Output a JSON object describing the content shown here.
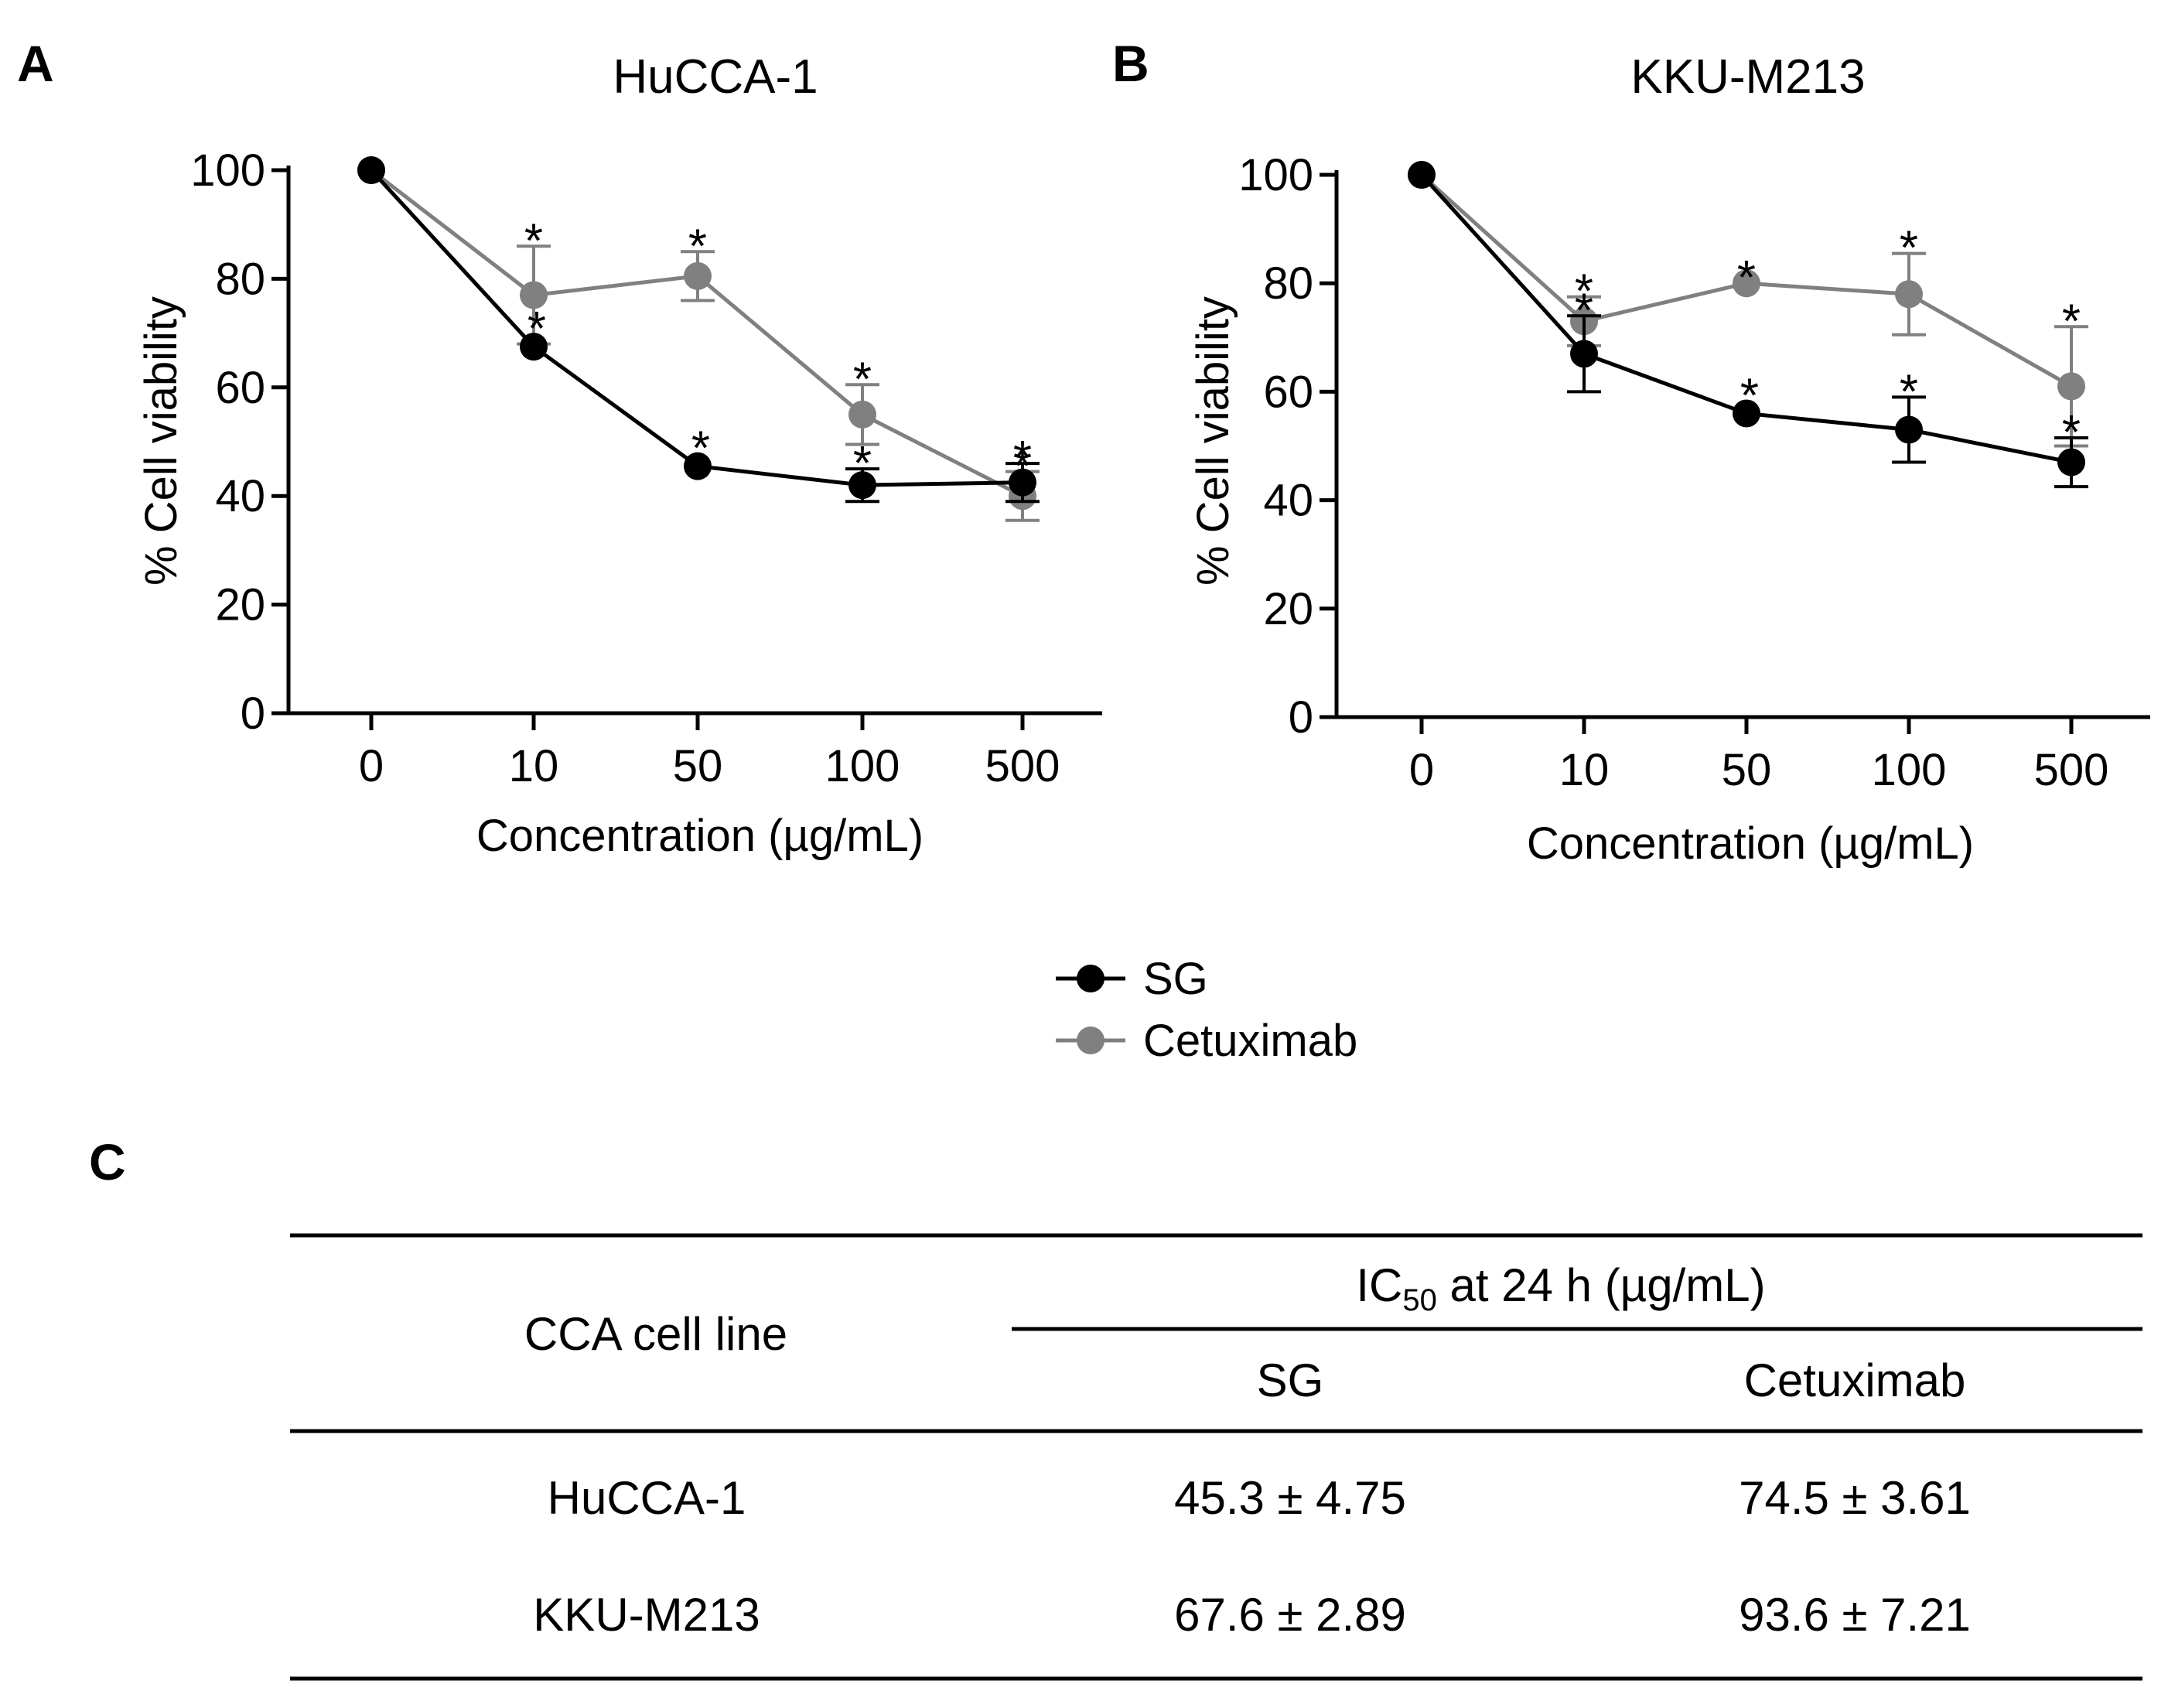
{
  "panel_letters": [
    "A",
    "B",
    "C"
  ],
  "colors": {
    "SG": "#000000",
    "Cetuximab": "#808080",
    "axis": "#000000"
  },
  "legend": [
    {
      "name": "SG",
      "color": "#000000"
    },
    {
      "name": "Cetuximab",
      "color": "#808080"
    }
  ],
  "chart_data": [
    {
      "type": "line",
      "panel": "A",
      "title": "HuCCA-1",
      "xlabel": "Concentration (µg/mL)",
      "ylabel": "% Cell viability",
      "categories": [
        "0",
        "10",
        "50",
        "100",
        "500"
      ],
      "yticks": [
        "0",
        "20",
        "40",
        "60",
        "80",
        "100"
      ],
      "ylim": [
        0,
        100
      ],
      "series": [
        {
          "name": "SG",
          "values": [
            100,
            67.5,
            45.5,
            42,
            42.5
          ],
          "errors": [
            0,
            0,
            0,
            3,
            3.5
          ],
          "significant": [
            false,
            true,
            true,
            true,
            true
          ]
        },
        {
          "name": "Cetuximab",
          "values": [
            100,
            77,
            80.5,
            55,
            40
          ],
          "errors": [
            0,
            9,
            4.5,
            5.5,
            4.5
          ],
          "significant": [
            false,
            true,
            true,
            true,
            true
          ]
        }
      ]
    },
    {
      "type": "line",
      "panel": "B",
      "title": "KKU-M213",
      "xlabel": "Concentration (µg/mL)",
      "ylabel": "% Cell viability",
      "categories": [
        "0",
        "10",
        "50",
        "100",
        "500"
      ],
      "yticks": [
        "0",
        "20",
        "40",
        "60",
        "80",
        "100"
      ],
      "ylim": [
        0,
        100
      ],
      "series": [
        {
          "name": "SG",
          "values": [
            100,
            67,
            56,
            53,
            47
          ],
          "errors": [
            0,
            7,
            0,
            6,
            4.5
          ],
          "significant": [
            false,
            true,
            true,
            true,
            true
          ]
        },
        {
          "name": "Cetuximab",
          "values": [
            100,
            73,
            80,
            78,
            61
          ],
          "errors": [
            0,
            4.5,
            0,
            7.5,
            11
          ],
          "significant": [
            false,
            true,
            true,
            true,
            true
          ]
        }
      ]
    }
  ],
  "table": {
    "row_header": "CCA cell line",
    "group_header_prefix": "IC",
    "group_header_sub": "50",
    "group_header_suffix": " at 24 h (µg/mL)",
    "columns": [
      "SG",
      "Cetuximab"
    ],
    "rows": [
      {
        "cell_line": "HuCCA-1",
        "values": [
          "45.3 ± 4.75",
          "74.5 ± 3.61"
        ]
      },
      {
        "cell_line": "KKU-M213",
        "values": [
          "67.6 ± 2.89",
          "93.6 ± 7.21"
        ]
      }
    ]
  }
}
